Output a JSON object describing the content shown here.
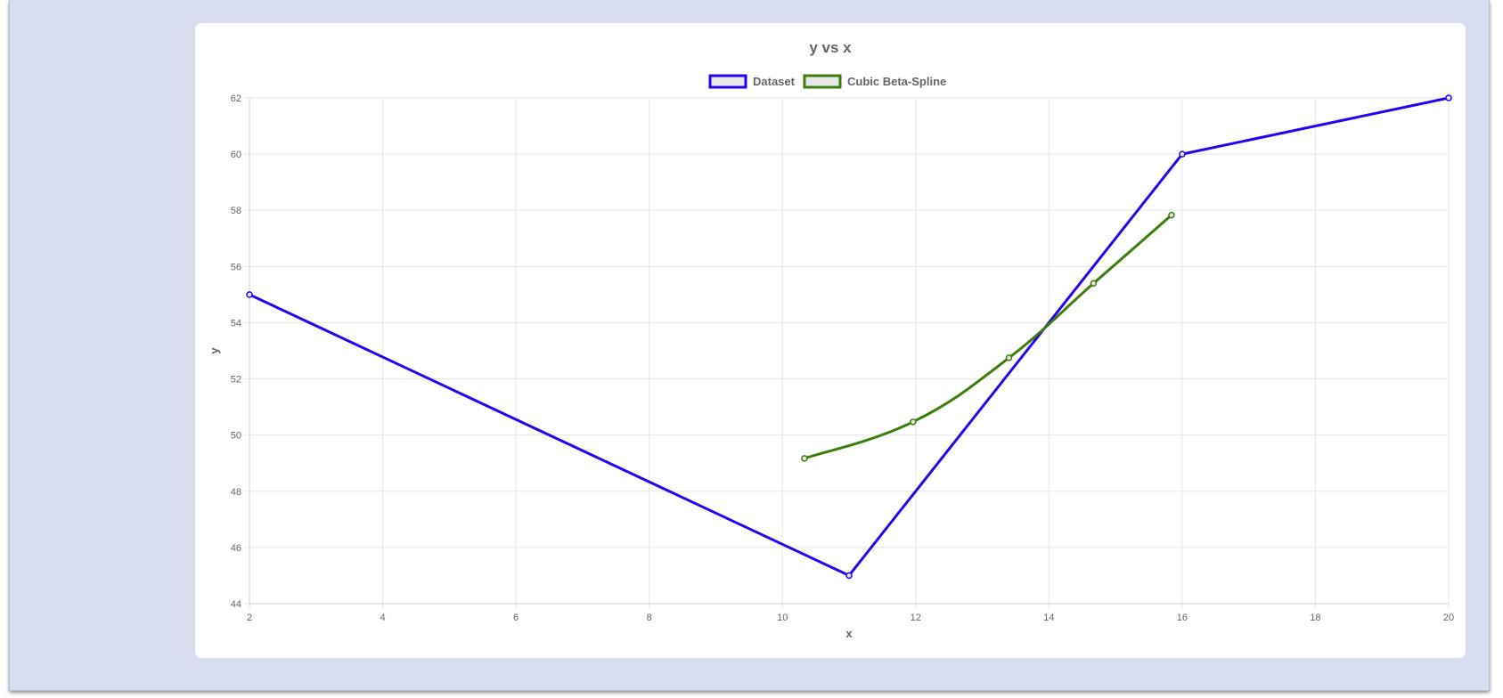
{
  "chart_data": {
    "type": "line",
    "title": "y vs x",
    "xlabel": "x",
    "ylabel": "y",
    "xlim": [
      2,
      20
    ],
    "ylim": [
      44,
      62
    ],
    "x_ticks": [
      2,
      4,
      6,
      8,
      10,
      12,
      14,
      16,
      18,
      20
    ],
    "y_ticks": [
      44,
      46,
      48,
      50,
      52,
      54,
      56,
      58,
      60,
      62
    ],
    "grid": true,
    "legend_position": "top-center",
    "series": [
      {
        "name": "Dataset",
        "color": "#2b00f0",
        "points": [
          {
            "x": 2,
            "y": 55
          },
          {
            "x": 11,
            "y": 45
          },
          {
            "x": 16,
            "y": 60
          },
          {
            "x": 20,
            "y": 62
          }
        ]
      },
      {
        "name": "Cubic Beta-Spline",
        "color": "#3d7d0d",
        "points": [
          {
            "x": 10.33,
            "y": 49.17
          },
          {
            "x": 11.96,
            "y": 50.47
          },
          {
            "x": 13.4,
            "y": 52.75
          },
          {
            "x": 14.67,
            "y": 55.4
          },
          {
            "x": 15.84,
            "y": 57.83
          }
        ]
      }
    ]
  }
}
